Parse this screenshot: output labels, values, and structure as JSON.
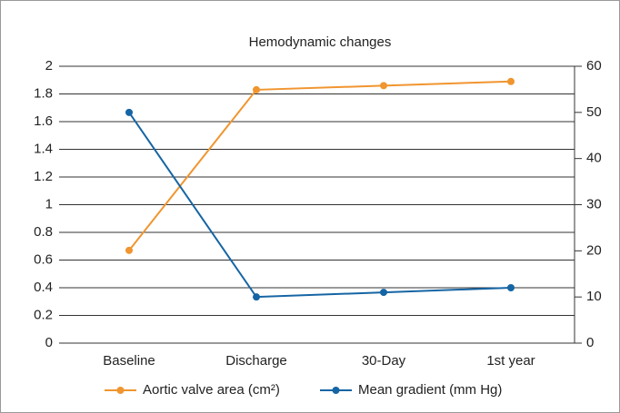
{
  "chart_data": {
    "type": "line",
    "title": "Hemodynamic changes",
    "categories": [
      "Baseline",
      "Discharge",
      "30-Day",
      "1st year"
    ],
    "series": [
      {
        "name": "Aortic valve area (cm²)",
        "color": "#f0952f",
        "values": [
          0.67,
          1.83,
          1.86,
          1.89
        ]
      },
      {
        "name": "Mean gradient (mm Hg)",
        "color": "#1565a4",
        "values": [
          50,
          10,
          11,
          12
        ],
        "axis": "y2"
      }
    ],
    "ylim": [
      0,
      2
    ],
    "yticks": [
      0,
      0.2,
      0.4,
      0.6,
      0.8,
      1,
      1.2,
      1.4,
      1.6,
      1.8,
      2
    ],
    "y2lim": [
      0,
      60
    ],
    "y2ticks": [
      0,
      10,
      20,
      30,
      40,
      50,
      60
    ],
    "grid": true,
    "legend": "bottom"
  }
}
